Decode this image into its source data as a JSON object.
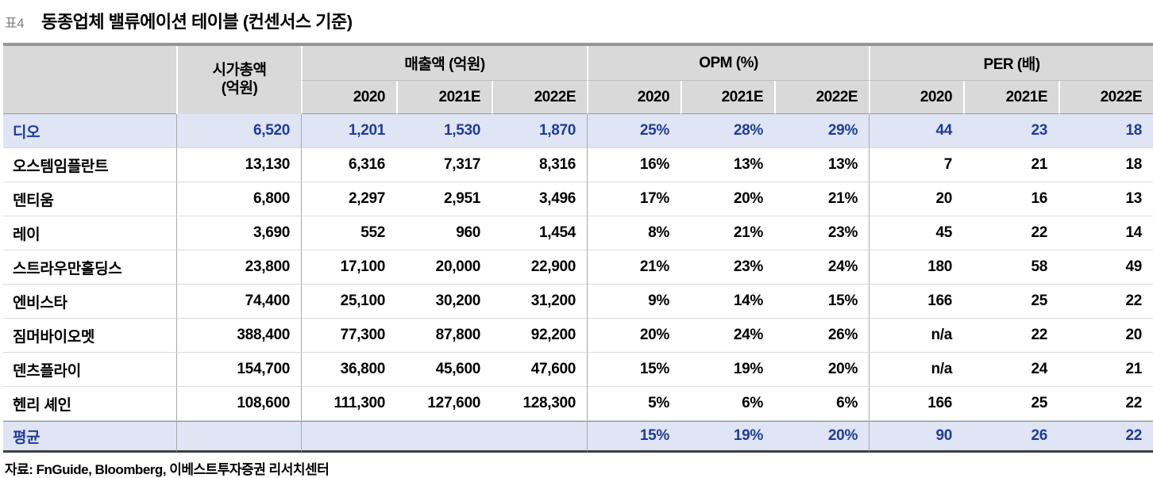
{
  "title": {
    "tag": "표4",
    "text": "동종업체 밸류에이션 테이블 (컨센서스 기준)"
  },
  "table": {
    "market_cap_header": {
      "line1": "시가총액",
      "line2": "(억원)"
    },
    "groups": [
      {
        "label": "매출액 (억원)"
      },
      {
        "label": "OPM (%)"
      },
      {
        "label": "PER (배)"
      }
    ],
    "years": [
      "2020",
      "2021E",
      "2022E"
    ],
    "rows": [
      {
        "name": "디오",
        "highlight": true,
        "values": [
          "6,520",
          "1,201",
          "1,530",
          "1,870",
          "25%",
          "28%",
          "29%",
          "44",
          "23",
          "18"
        ]
      },
      {
        "name": "오스템임플란트",
        "highlight": false,
        "values": [
          "13,130",
          "6,316",
          "7,317",
          "8,316",
          "16%",
          "13%",
          "13%",
          "7",
          "21",
          "18"
        ]
      },
      {
        "name": "덴티움",
        "highlight": false,
        "values": [
          "6,800",
          "2,297",
          "2,951",
          "3,496",
          "17%",
          "20%",
          "21%",
          "20",
          "16",
          "13"
        ]
      },
      {
        "name": "레이",
        "highlight": false,
        "values": [
          "3,690",
          "552",
          "960",
          "1,454",
          "8%",
          "21%",
          "23%",
          "45",
          "22",
          "14"
        ]
      },
      {
        "name": "스트라우만홀딩스",
        "highlight": false,
        "values": [
          "23,800",
          "17,100",
          "20,000",
          "22,900",
          "21%",
          "23%",
          "24%",
          "180",
          "58",
          "49"
        ]
      },
      {
        "name": "엔비스타",
        "highlight": false,
        "values": [
          "74,400",
          "25,100",
          "30,200",
          "31,200",
          "9%",
          "14%",
          "15%",
          "166",
          "25",
          "22"
        ]
      },
      {
        "name": "짐머바이오멧",
        "highlight": false,
        "values": [
          "388,400",
          "77,300",
          "87,800",
          "92,200",
          "20%",
          "24%",
          "26%",
          "n/a",
          "22",
          "20"
        ]
      },
      {
        "name": "덴츠플라이",
        "highlight": false,
        "values": [
          "154,700",
          "36,800",
          "45,600",
          "47,600",
          "15%",
          "19%",
          "20%",
          "n/a",
          "24",
          "21"
        ]
      },
      {
        "name": "헨리 셰인",
        "highlight": false,
        "values": [
          "108,600",
          "111,300",
          "127,600",
          "128,300",
          "5%",
          "6%",
          "6%",
          "166",
          "25",
          "22"
        ]
      }
    ],
    "summary": {
      "name": "평균",
      "highlight": true,
      "values": [
        "",
        "",
        "",
        "",
        "15%",
        "19%",
        "20%",
        "90",
        "26",
        "22"
      ]
    }
  },
  "source": "자료: FnGuide, Bloomberg, 이베스트투자증권 리서치센터",
  "colors": {
    "accent_blue": "#1f3c99",
    "highlight_bg": "#dfe5f4",
    "header_bg": "#d9d9d9"
  }
}
